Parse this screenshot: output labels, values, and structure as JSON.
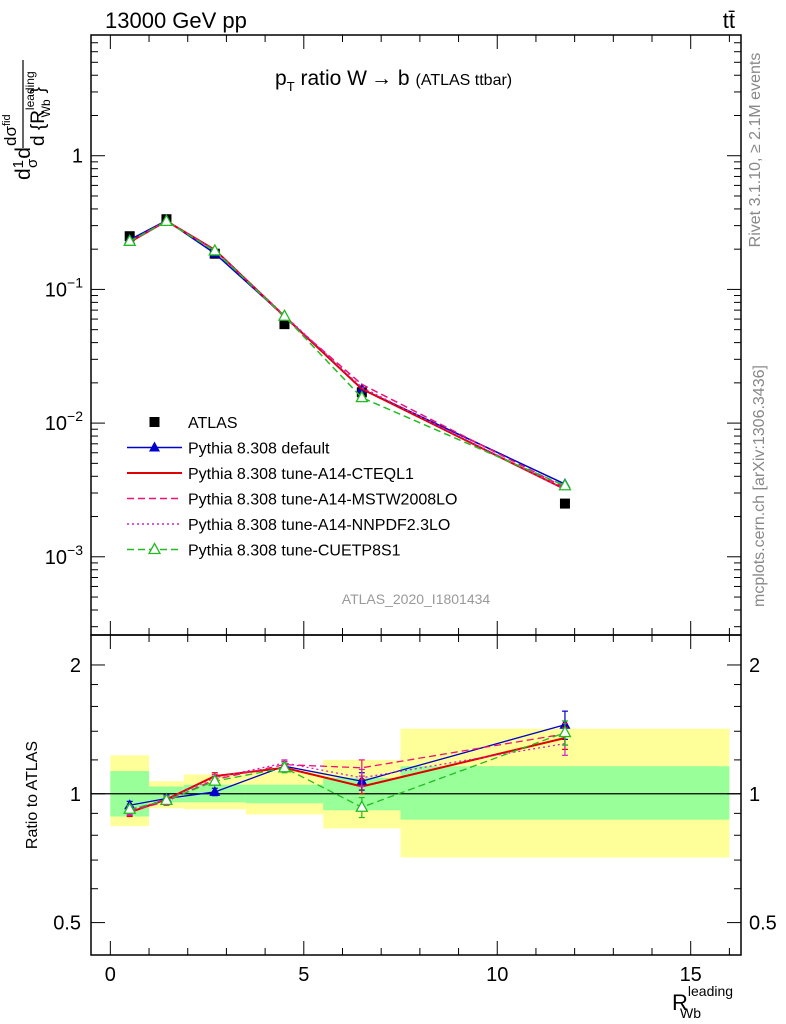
{
  "header": {
    "beam_label": "13000 GeV pp",
    "process_label": "tt̄"
  },
  "side_labels": {
    "rivet": "Rivet 3.1.10, ≥ 2.1M events",
    "mcplots": "mcplots.cern.ch [arXiv:1306.3436]"
  },
  "colors": {
    "atlas": "#000000",
    "default": "#0000cc",
    "a14_cteql1": "#e00000",
    "a14_mstw": "#ee1177",
    "a14_nnpdf": "#cc22cc",
    "cuetp8s1": "#22bb22",
    "band_inner": "#99ff99",
    "band_outer": "#ffff99"
  },
  "chart_data": [
    {
      "type": "line",
      "panel": "main",
      "title_parts": {
        "p": "p",
        "p_sub": "T",
        "mid": " ratio W",
        "arrow": "→",
        "b": " b",
        "small": "(ATLAS ttbar)"
      },
      "ylabel_parts": {
        "d": "d",
        "one_over_sigma": "1",
        "sigma": "σ",
        "frac_num": "dσ",
        "frac_num_sup": "fid",
        "frac_den": "d {R",
        "sup": "leading",
        "sub": "Wb",
        "close": "}"
      },
      "analysis_label": "ATLAS_2020_I1801434",
      "y_scale": "log",
      "xlim": [
        -0.5,
        16.3
      ],
      "ylim": [
        0.00026,
        8.0
      ],
      "y_ticks": [
        {
          "value": 0.001,
          "base": "10",
          "exp": "−3"
        },
        {
          "value": 0.01,
          "base": "10",
          "exp": "−2"
        },
        {
          "value": 0.1,
          "base": "10",
          "exp": "−1"
        },
        {
          "value": 1,
          "base": "1",
          "exp": ""
        }
      ],
      "x": [
        0.5,
        1.45,
        2.7,
        4.5,
        6.5,
        11.75
      ],
      "legend_placement": "lower-left",
      "series": [
        {
          "key": "atlas",
          "name": "ATLAS",
          "marker": "square",
          "values": [
            0.25,
            0.335,
            0.185,
            0.055,
            0.017,
            0.0025
          ]
        },
        {
          "key": "default",
          "name": "Pythia 8.308 default",
          "marker": "triangle",
          "line": "solid",
          "values": [
            0.235,
            0.328,
            0.186,
            0.063,
            0.018,
            0.0035
          ]
        },
        {
          "key": "a14_cteql1",
          "name": "Pythia 8.308 tune-A14-CTEQL1",
          "marker": "none",
          "line": "solid",
          "values": [
            0.226,
            0.325,
            0.198,
            0.063,
            0.018,
            0.0032
          ]
        },
        {
          "key": "a14_mstw",
          "name": "Pythia 8.308 tune-A14-MSTW2008LO",
          "marker": "none",
          "line": "dashed",
          "values": [
            0.227,
            0.322,
            0.196,
            0.062,
            0.0195,
            0.0033
          ]
        },
        {
          "key": "a14_nnpdf",
          "name": "Pythia 8.308 tune-A14-NNPDF2.3LO",
          "marker": "none",
          "line": "dotted",
          "values": [
            0.229,
            0.325,
            0.197,
            0.064,
            0.0185,
            0.0032
          ]
        },
        {
          "key": "cuetp8s1",
          "name": "Pythia 8.308 tune-CUETP8S1",
          "marker": "open-triangle",
          "line": "dashed",
          "values": [
            0.229,
            0.323,
            0.194,
            0.063,
            0.0155,
            0.0034
          ]
        }
      ]
    },
    {
      "type": "line",
      "panel": "ratio",
      "ylabel": "Ratio to ATLAS",
      "y_scale": "log",
      "xlim": [
        -0.5,
        16.3
      ],
      "ylim": [
        0.42,
        2.35
      ],
      "y_ticks": [
        0.5,
        1,
        2
      ],
      "x_ticks": [
        0,
        5,
        10,
        15
      ],
      "xlabel_parts": {
        "R": "R",
        "sup": "leading",
        "sub": "Wb"
      },
      "bands": [
        {
          "x0": 0,
          "x1": 1,
          "inner": [
            0.885,
            1.13
          ],
          "outer": [
            0.84,
            1.23
          ]
        },
        {
          "x0": 1,
          "x1": 1.9,
          "inner": [
            0.955,
            1.04
          ],
          "outer": [
            0.925,
            1.07
          ]
        },
        {
          "x0": 1.9,
          "x1": 3.5,
          "inner": [
            0.955,
            1.05
          ],
          "outer": [
            0.92,
            1.11
          ]
        },
        {
          "x0": 3.5,
          "x1": 5.5,
          "inner": [
            0.95,
            1.05
          ],
          "outer": [
            0.895,
            1.13
          ]
        },
        {
          "x0": 5.5,
          "x1": 7.5,
          "inner": [
            0.915,
            1.09
          ],
          "outer": [
            0.83,
            1.2
          ]
        },
        {
          "x0": 7.5,
          "x1": 16.0,
          "inner": [
            0.87,
            1.16
          ],
          "outer": [
            0.71,
            1.42
          ]
        }
      ],
      "x": [
        0.5,
        1.45,
        2.7,
        4.5,
        6.5,
        11.75
      ],
      "series": [
        {
          "key": "default",
          "marker": "triangle",
          "line": "solid",
          "values": [
            0.94,
            0.975,
            1.01,
            1.16,
            1.07,
            1.45
          ],
          "err": [
            0.02,
            0.02,
            0.02,
            0.03,
            0.05,
            0.11
          ]
        },
        {
          "key": "a14_cteql1",
          "marker": "none",
          "line": "solid",
          "values": [
            0.905,
            0.97,
            1.1,
            1.15,
            1.04,
            1.35
          ],
          "err": [
            0.02,
            0.02,
            0.02,
            0.02,
            0.04,
            0.08
          ]
        },
        {
          "key": "a14_mstw",
          "marker": "none",
          "line": "dashed",
          "values": [
            0.91,
            0.96,
            1.08,
            1.17,
            1.15,
            1.38
          ],
          "err": [
            0.02,
            0.02,
            0.02,
            0.02,
            0.05,
            0.08
          ]
        },
        {
          "key": "a14_nnpdf",
          "marker": "none",
          "line": "dotted",
          "values": [
            0.915,
            0.97,
            1.09,
            1.18,
            1.09,
            1.31
          ],
          "err": [
            0.02,
            0.02,
            0.02,
            0.02,
            0.05,
            0.08
          ]
        },
        {
          "key": "cuetp8s1",
          "marker": "open-triangle",
          "line": "dashed",
          "values": [
            0.92,
            0.965,
            1.07,
            1.15,
            0.93,
            1.39
          ],
          "err": [
            0.02,
            0.02,
            0.02,
            0.03,
            0.05,
            0.09
          ]
        }
      ]
    }
  ]
}
